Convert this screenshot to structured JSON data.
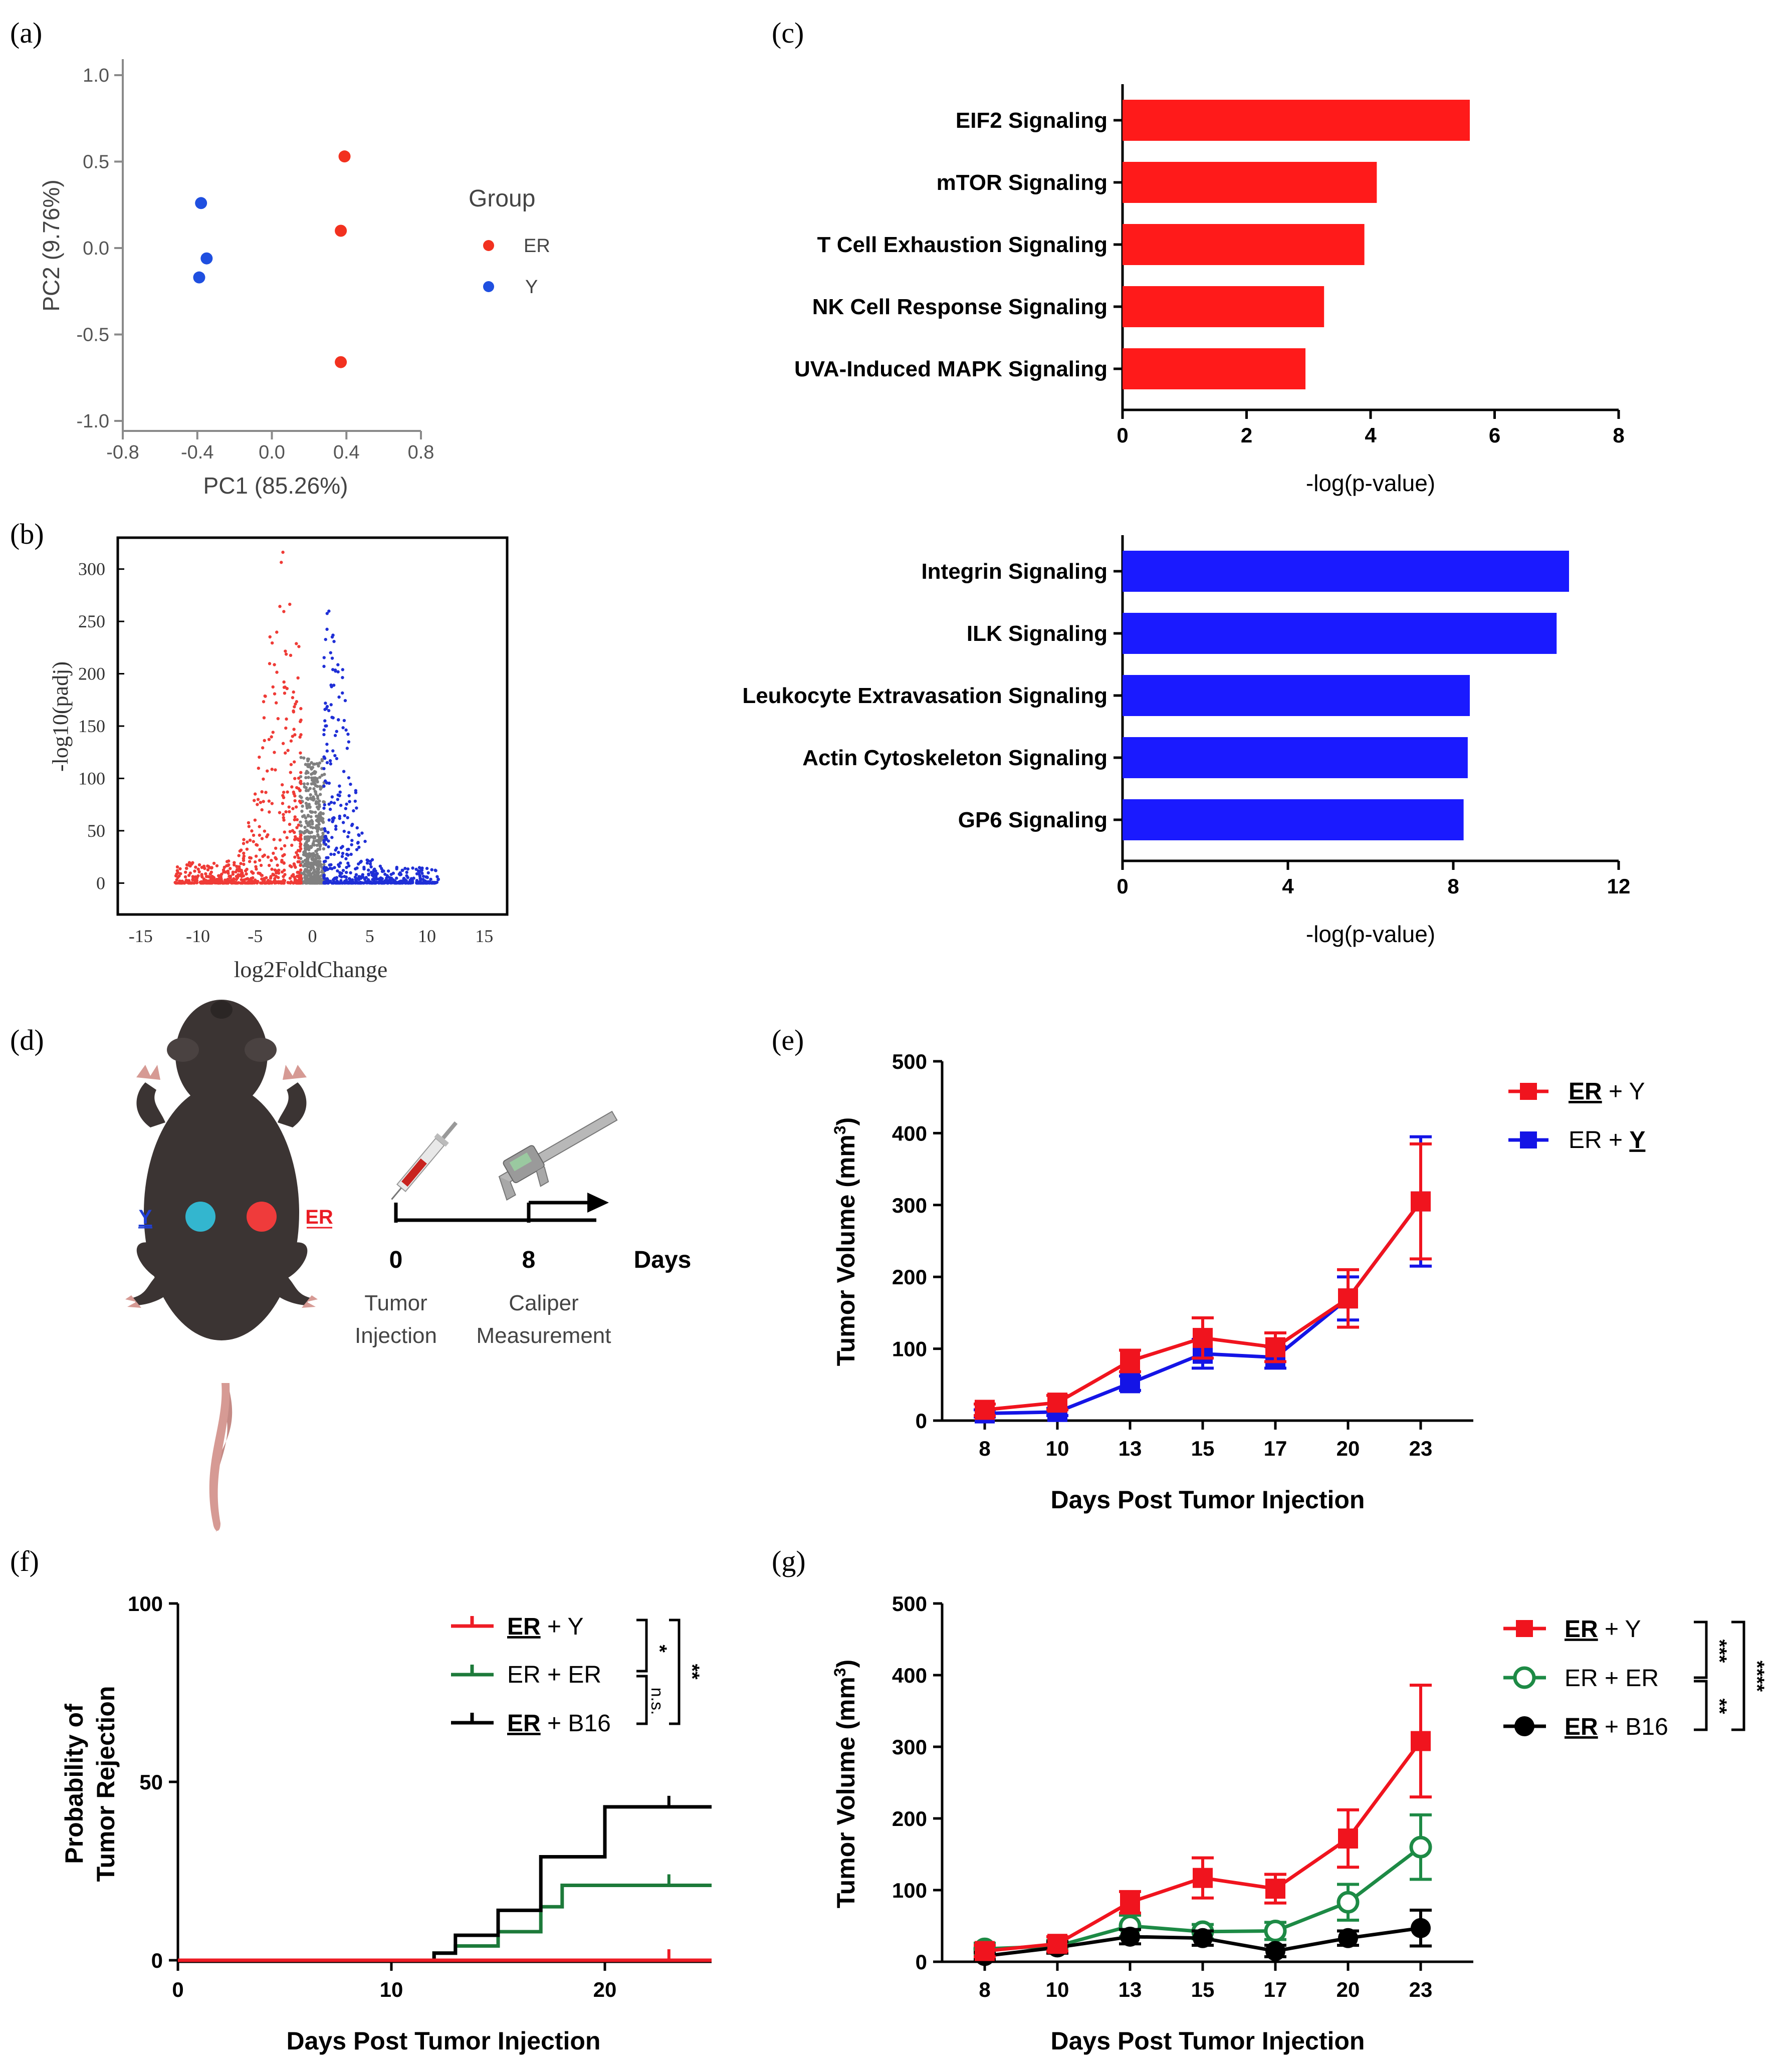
{
  "panels": {
    "a": {
      "label": "(a)",
      "chart_data": {
        "type": "scatter",
        "xlabel": "PC1 (85.26%)",
        "ylabel": "PC2 (9.76%)",
        "xlim": [
          -0.8,
          0.8
        ],
        "ylim": [
          -1.0,
          1.0
        ],
        "xticks": [
          "-0.8",
          "-0.4",
          "0.0",
          "0.4",
          "0.8"
        ],
        "yticks": [
          "1.0",
          "0.5",
          "0.0",
          "-0.5",
          "-1.0"
        ],
        "legend_title": "Group",
        "series": [
          {
            "name": "ER",
            "color": "#f2311f",
            "points": [
              [
                0.39,
                0.53
              ],
              [
                0.37,
                0.1
              ],
              [
                0.37,
                -0.66
              ]
            ]
          },
          {
            "name": "Y",
            "color": "#1f4fe0",
            "points": [
              [
                -0.38,
                0.26
              ],
              [
                -0.35,
                -0.06
              ],
              [
                -0.39,
                -0.17
              ]
            ]
          }
        ]
      }
    },
    "b": {
      "label": "(b)",
      "chart_data": {
        "type": "scatter",
        "subtype": "volcano",
        "xlabel": "log2FoldChange",
        "ylabel": "-log10(padj)",
        "xlim": [
          -17,
          17
        ],
        "ylim": [
          -30,
          330
        ],
        "xticks": [
          "-15",
          "-10",
          "-5",
          "0",
          "5",
          "10",
          "15"
        ],
        "yticks": [
          "300",
          "250",
          "200",
          "150",
          "100",
          "50",
          "0"
        ],
        "down_color": "#ef3b36",
        "up_color": "#1f2fd6",
        "ns_color": "#808080",
        "down_envelope_xmin": -12,
        "up_envelope_xmax": 11
      }
    },
    "c": {
      "label": "(c)",
      "charts": [
        {
          "type": "bar",
          "orientation": "horizontal",
          "color": "#ff1a1a",
          "categories": [
            "EIF2 Signaling",
            "mTOR Signaling",
            "T Cell Exhaustion Signaling",
            "NK Cell Response Signaling",
            "UVA-Induced MAPK Signaling"
          ],
          "values": [
            5.6,
            4.1,
            3.9,
            3.25,
            2.95
          ],
          "xlim": [
            0,
            8
          ],
          "xticks": [
            "0",
            "2",
            "4",
            "6",
            "8"
          ],
          "xlabel": "-log(p-value)"
        },
        {
          "type": "bar",
          "orientation": "horizontal",
          "color": "#1a1aff",
          "categories": [
            "Integrin Signaling",
            "ILK Signaling",
            "Leukocyte Extravasation Signaling",
            "Actin Cytoskeleton Signaling",
            "GP6 Signaling"
          ],
          "values": [
            10.8,
            10.5,
            8.4,
            8.35,
            8.25
          ],
          "xlim": [
            0,
            12
          ],
          "xticks": [
            "0",
            "4",
            "8",
            "12"
          ],
          "xlabel": "-log(p-value)"
        }
      ]
    },
    "d": {
      "label": "(d)",
      "y_label": "Y",
      "er_label": "ER",
      "day0": "0",
      "day8": "8",
      "days": "Days",
      "event0_line1": "Tumor",
      "event0_line2": "Injection",
      "event8_line1": "Caliper",
      "event8_line2": "Measurement"
    },
    "e": {
      "label": "(e)",
      "chart_data": {
        "type": "line",
        "x": [
          "8",
          "10",
          "13",
          "15",
          "17",
          "20",
          "23"
        ],
        "xlabel": "Days Post Tumor Injection",
        "ylabel": "Tumor Volume (mm",
        "ylabel_sup": "3",
        "ylabel_end": ")",
        "ylim": [
          0,
          500
        ],
        "yticks": [
          "500",
          "400",
          "300",
          "200",
          "100",
          "0"
        ],
        "series": [
          {
            "name_u": "ER",
            "name_rest": " + Y",
            "color": "#f0141e",
            "values": [
              15,
              25,
              83,
              115,
              102,
              170,
              305
            ],
            "err": [
              8,
              10,
              15,
              28,
              20,
              40,
              80
            ]
          },
          {
            "name_pre": "ER + ",
            "name_u": "Y",
            "color": "#1414e6",
            "values": [
              10,
              12,
              52,
              93,
              88,
              170,
              305
            ],
            "err": [
              5,
              5,
              10,
              20,
              15,
              30,
              90
            ]
          }
        ]
      }
    },
    "f": {
      "label": "(f)",
      "chart_data": {
        "type": "line",
        "subtype": "step",
        "xlabel": "Days Post Tumor Injection",
        "ylabel_line1": "Probability of",
        "ylabel_line2": "Tumor Rejection",
        "xlim": [
          0,
          25
        ],
        "ylim": [
          0,
          100
        ],
        "xticks": [
          "0",
          "10",
          "20"
        ],
        "yticks": [
          "100",
          "50",
          "0"
        ],
        "series": [
          {
            "name_u": "ER",
            "name_rest": " + Y",
            "color": "#ee1c25",
            "steps": [
              [
                0,
                0
              ],
              [
                25,
                0
              ]
            ]
          },
          {
            "name": "ER + ER",
            "color": "#1d7a3a",
            "steps": [
              [
                0,
                0
              ],
              [
                12,
                0
              ],
              [
                12,
                2
              ],
              [
                13,
                2
              ],
              [
                13,
                4
              ],
              [
                15,
                4
              ],
              [
                15,
                8
              ],
              [
                17,
                8
              ],
              [
                17,
                15
              ],
              [
                18,
                15
              ],
              [
                18,
                21
              ],
              [
                25,
                21
              ]
            ]
          },
          {
            "name_u": "ER",
            "name_rest": " + B16",
            "color": "#000000",
            "steps": [
              [
                0,
                0
              ],
              [
                12,
                0
              ],
              [
                12,
                2
              ],
              [
                13,
                2
              ],
              [
                13,
                7
              ],
              [
                15,
                7
              ],
              [
                15,
                14
              ],
              [
                17,
                14
              ],
              [
                17,
                29
              ],
              [
                20,
                29
              ],
              [
                20,
                43
              ],
              [
                25,
                43
              ]
            ]
          }
        ],
        "sig_inner_top": "*",
        "sig_inner_bottom": "n.s.",
        "sig_outer": "**"
      }
    },
    "g": {
      "label": "(g)",
      "chart_data": {
        "type": "line",
        "x": [
          "8",
          "10",
          "13",
          "15",
          "17",
          "20",
          "23"
        ],
        "xlabel": "Days Post Tumor Injection",
        "ylabel": "Tumor Volume (mm",
        "ylabel_sup": "3",
        "ylabel_end": ")",
        "ylim": [
          0,
          500
        ],
        "yticks": [
          "500",
          "400",
          "300",
          "200",
          "100",
          "0"
        ],
        "series": [
          {
            "name_u": "ER",
            "name_rest": " + Y",
            "color": "#f0141e",
            "marker": "square",
            "values": [
              15,
              25,
              83,
              117,
              102,
              172,
              308
            ],
            "err": [
              8,
              10,
              15,
              28,
              20,
              40,
              78
            ]
          },
          {
            "name": "ER + ER",
            "color": "#1d8a45",
            "marker": "open-circle",
            "values": [
              18,
              22,
              50,
              42,
              43,
              83,
              160
            ],
            "err": [
              8,
              8,
              15,
              10,
              12,
              25,
              45
            ]
          },
          {
            "name_u": "ER",
            "name_rest": " + B16",
            "color": "#000000",
            "marker": "circle",
            "values": [
              8,
              20,
              35,
              33,
              15,
              33,
              47
            ],
            "err": [
              5,
              8,
              10,
              10,
              8,
              10,
              25
            ]
          }
        ],
        "sig_top": "***",
        "sig_bottom": "**",
        "sig_outer": "****"
      }
    }
  }
}
